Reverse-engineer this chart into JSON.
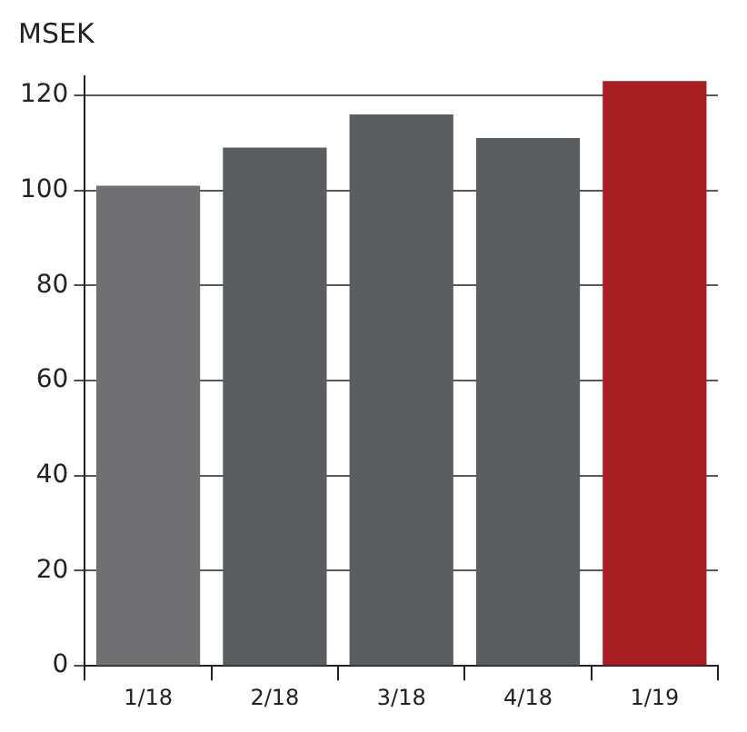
{
  "chart_data": {
    "type": "bar",
    "ylabel": "MSEK",
    "categories": [
      "1/18",
      "2/18",
      "3/18",
      "4/18",
      "1/19"
    ],
    "values": [
      101,
      109,
      116,
      111,
      123
    ],
    "colors": [
      "#707073",
      "#5b5e61",
      "#5b5e61",
      "#5b5e61",
      "#a61e22"
    ],
    "ylim": [
      0,
      124
    ],
    "yticks": [
      0,
      20,
      40,
      60,
      80,
      100,
      120
    ],
    "grid": "y",
    "legend": false
  }
}
